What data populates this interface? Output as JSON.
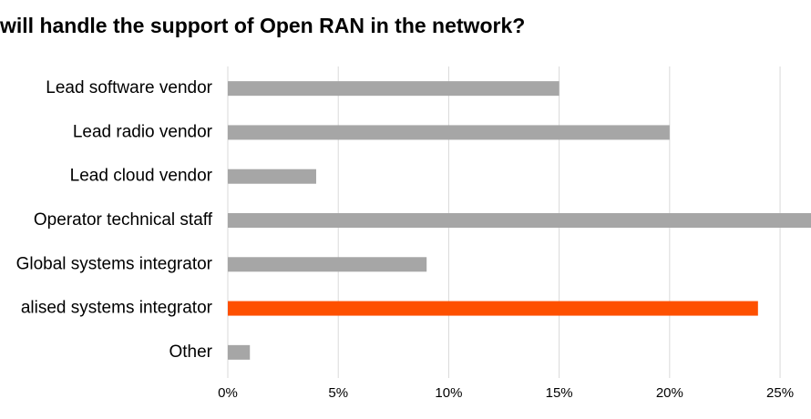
{
  "chart_data": {
    "type": "hbar",
    "title": "will handle the support of Open RAN in the network?",
    "categories": [
      "Lead software vendor",
      "Lead radio vendor",
      "Lead cloud vendor",
      "Operator technical staff",
      "Global systems integrator",
      "alised systems integrator",
      "Other"
    ],
    "values": [
      15,
      20,
      4,
      27,
      9,
      24,
      1
    ],
    "colors": [
      "#a6a6a6",
      "#a6a6a6",
      "#a6a6a6",
      "#a6a6a6",
      "#a6a6a6",
      "#fe5000",
      "#a6a6a6"
    ],
    "xlim": [
      0,
      26.4
    ],
    "xticks": [
      {
        "value": 0,
        "label": "0%"
      },
      {
        "value": 5,
        "label": "5%"
      },
      {
        "value": 10,
        "label": "10%"
      },
      {
        "value": 15,
        "label": "15%"
      },
      {
        "value": 20,
        "label": "20%"
      },
      {
        "value": 25,
        "label": "25%"
      }
    ],
    "grid": true
  }
}
